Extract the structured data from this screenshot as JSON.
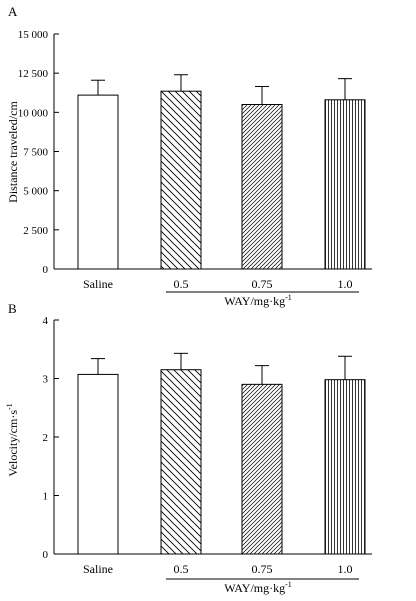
{
  "chart_data": [
    {
      "type": "bar",
      "panel_label": "A",
      "categories": [
        "Saline",
        "0.5",
        "0.75",
        "1.0"
      ],
      "values": [
        11100,
        11350,
        10500,
        10800
      ],
      "errors": [
        950,
        1050,
        1150,
        1350
      ],
      "patterns": [
        "none",
        "diag-back",
        "diag-fwd",
        "vertical"
      ],
      "ylabel": "Distance traveled/cm",
      "xlabel": "WAY/mg·kg",
      "xlabel_sup": "-1",
      "ylim": [
        0,
        15000
      ],
      "yticks": [
        0,
        2500,
        5000,
        7500,
        10000,
        12500,
        15000
      ],
      "ytick_labels": [
        "0",
        "2 500",
        "5 000",
        "7 500",
        "10 000",
        "12 500",
        "15 000"
      ],
      "grid": false
    },
    {
      "type": "bar",
      "panel_label": "B",
      "categories": [
        "Saline",
        "0.5",
        "0.75",
        "1.0"
      ],
      "values": [
        3.07,
        3.15,
        2.9,
        2.98
      ],
      "errors": [
        0.27,
        0.28,
        0.32,
        0.4
      ],
      "patterns": [
        "none",
        "diag-back",
        "diag-fwd",
        "vertical"
      ],
      "ylabel": "Velocity/cm·s",
      "ylabel_sup": "-1",
      "xlabel": "WAY/mg·kg",
      "xlabel_sup": "-1",
      "ylim": [
        0,
        4
      ],
      "yticks": [
        0,
        1,
        2,
        3,
        4
      ],
      "ytick_labels": [
        "0",
        "1",
        "2",
        "3",
        "4"
      ],
      "grid": false
    }
  ]
}
